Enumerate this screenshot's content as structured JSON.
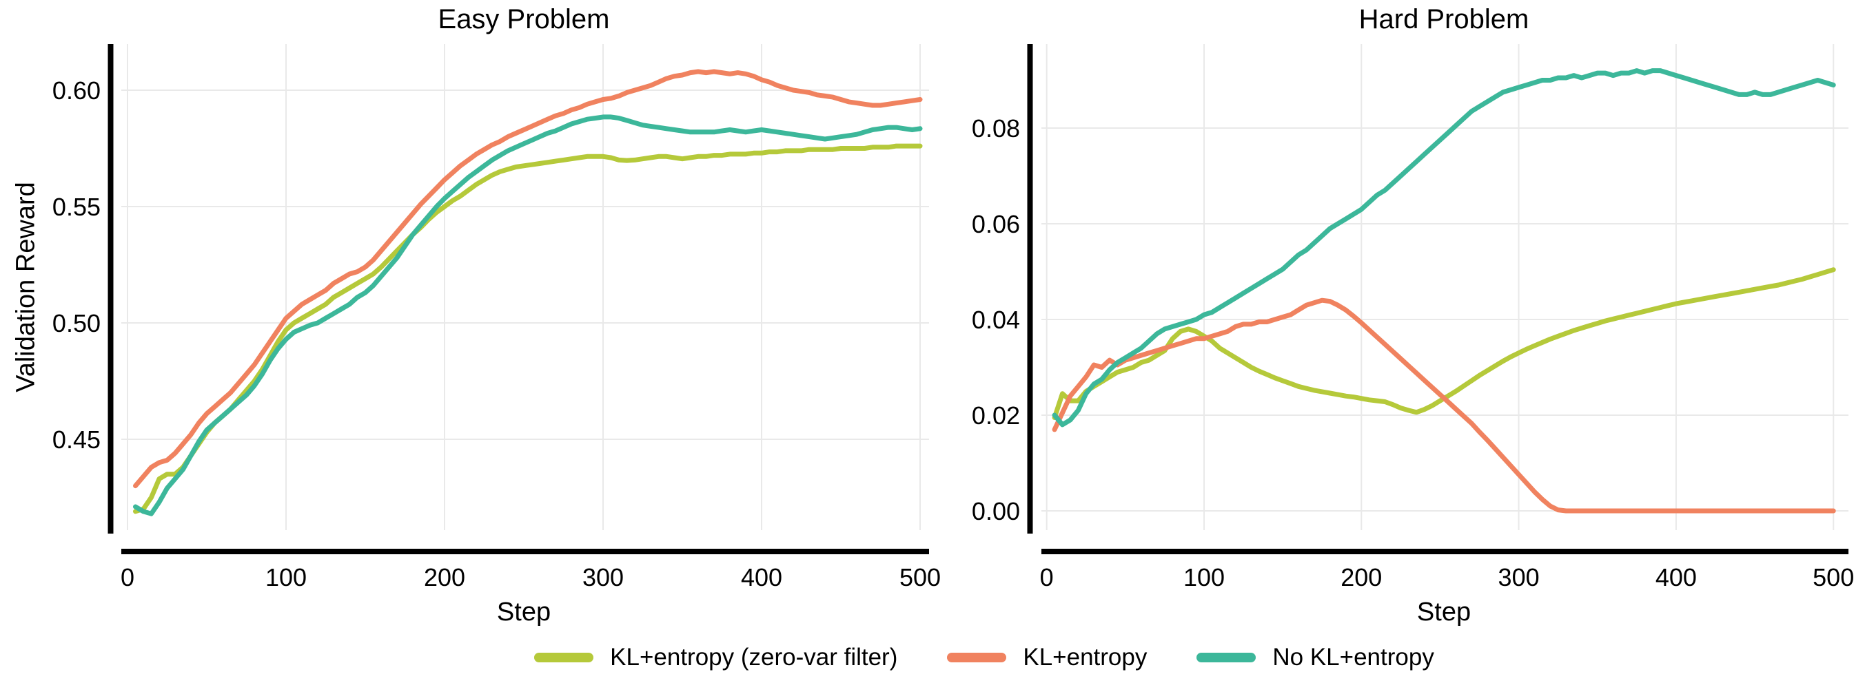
{
  "figure": {
    "background": "#ffffff",
    "text_color": "#000000",
    "grid_color": "#e9e9e9",
    "axis_color": "#000000"
  },
  "legend": {
    "items": [
      {
        "label": "KL+entropy (zero-var filter)",
        "color": "#b5c93a"
      },
      {
        "label": "KL+entropy",
        "color": "#f0825f"
      },
      {
        "label": "No KL+entropy",
        "color": "#3cb79a"
      }
    ]
  },
  "chart_data": [
    {
      "type": "line",
      "title": "Easy Problem",
      "xlabel": "Step",
      "ylabel": "Validation Reward",
      "grid": true,
      "legend_position": "bottom-center",
      "xlim": [
        0,
        500
      ],
      "ylim": [
        0.415,
        0.62
      ],
      "x_ticks": [
        {
          "value": 0,
          "label": "0"
        },
        {
          "value": 100,
          "label": "100"
        },
        {
          "value": 200,
          "label": "200"
        },
        {
          "value": 300,
          "label": "300"
        },
        {
          "value": 400,
          "label": "400"
        },
        {
          "value": 500,
          "label": "500"
        }
      ],
      "y_ticks": [
        {
          "value": 0.45,
          "label": "0.45"
        },
        {
          "value": 0.5,
          "label": "0.50"
        },
        {
          "value": 0.55,
          "label": "0.55"
        },
        {
          "value": 0.6,
          "label": "0.60"
        }
      ],
      "x": [
        5,
        10,
        15,
        20,
        25,
        30,
        35,
        40,
        45,
        50,
        55,
        60,
        65,
        70,
        75,
        80,
        85,
        90,
        95,
        100,
        105,
        110,
        115,
        120,
        125,
        130,
        135,
        140,
        145,
        150,
        155,
        160,
        165,
        170,
        175,
        180,
        185,
        190,
        195,
        200,
        205,
        210,
        215,
        220,
        225,
        230,
        235,
        240,
        245,
        250,
        255,
        260,
        265,
        270,
        275,
        280,
        285,
        290,
        295,
        300,
        305,
        310,
        315,
        320,
        325,
        330,
        335,
        340,
        345,
        350,
        355,
        360,
        365,
        370,
        375,
        380,
        385,
        390,
        395,
        400,
        405,
        410,
        415,
        420,
        425,
        430,
        435,
        440,
        445,
        450,
        455,
        460,
        465,
        470,
        475,
        480,
        485,
        490,
        495,
        500
      ],
      "series": [
        {
          "name": "KL+entropy (zero-var filter)",
          "color": "#b5c93a",
          "values": [
            0.419,
            0.42,
            0.425,
            0.433,
            0.435,
            0.435,
            0.438,
            0.443,
            0.448,
            0.453,
            0.457,
            0.46,
            0.463,
            0.467,
            0.471,
            0.475,
            0.48,
            0.486,
            0.492,
            0.497,
            0.5,
            0.502,
            0.504,
            0.506,
            0.508,
            0.511,
            0.513,
            0.515,
            0.517,
            0.519,
            0.521,
            0.524,
            0.5275,
            0.531,
            0.5345,
            0.538,
            0.541,
            0.5445,
            0.5475,
            0.55,
            0.5525,
            0.5545,
            0.557,
            0.5595,
            0.5615,
            0.5635,
            0.565,
            0.566,
            0.567,
            0.5675,
            0.568,
            0.5685,
            0.569,
            0.5695,
            0.57,
            0.5705,
            0.571,
            0.5715,
            0.5715,
            0.5715,
            0.571,
            0.57,
            0.5698,
            0.57,
            0.5705,
            0.571,
            0.5715,
            0.5715,
            0.571,
            0.5705,
            0.571,
            0.5715,
            0.5715,
            0.572,
            0.572,
            0.5725,
            0.5725,
            0.5725,
            0.573,
            0.573,
            0.5735,
            0.5735,
            0.574,
            0.574,
            0.574,
            0.5745,
            0.5745,
            0.5745,
            0.5745,
            0.575,
            0.575,
            0.575,
            0.575,
            0.5755,
            0.5755,
            0.5755,
            0.576,
            0.576,
            0.576,
            0.576
          ]
        },
        {
          "name": "KL+entropy",
          "color": "#f0825f",
          "values": [
            0.43,
            0.434,
            0.438,
            0.44,
            0.441,
            0.444,
            0.448,
            0.452,
            0.457,
            0.461,
            0.464,
            0.467,
            0.47,
            0.474,
            0.478,
            0.482,
            0.487,
            0.492,
            0.497,
            0.502,
            0.505,
            0.508,
            0.51,
            0.512,
            0.514,
            0.517,
            0.519,
            0.521,
            0.522,
            0.524,
            0.527,
            0.531,
            0.535,
            0.539,
            0.543,
            0.547,
            0.551,
            0.5545,
            0.558,
            0.5615,
            0.5645,
            0.5675,
            0.57,
            0.5725,
            0.5745,
            0.5765,
            0.578,
            0.58,
            0.5815,
            0.583,
            0.5845,
            0.586,
            0.5875,
            0.589,
            0.59,
            0.5915,
            0.5925,
            0.594,
            0.595,
            0.596,
            0.5965,
            0.5975,
            0.599,
            0.6,
            0.601,
            0.602,
            0.6035,
            0.605,
            0.606,
            0.6065,
            0.6075,
            0.608,
            0.6075,
            0.608,
            0.6075,
            0.607,
            0.6075,
            0.607,
            0.606,
            0.6045,
            0.6035,
            0.602,
            0.601,
            0.6,
            0.5995,
            0.599,
            0.598,
            0.5975,
            0.597,
            0.596,
            0.595,
            0.5945,
            0.594,
            0.5935,
            0.5935,
            0.594,
            0.5945,
            0.595,
            0.5955,
            0.596
          ]
        },
        {
          "name": "No KL+entropy",
          "color": "#3cb79a",
          "values": [
            0.421,
            0.419,
            0.418,
            0.423,
            0.429,
            0.433,
            0.437,
            0.443,
            0.449,
            0.454,
            0.457,
            0.46,
            0.463,
            0.466,
            0.469,
            0.473,
            0.478,
            0.484,
            0.489,
            0.493,
            0.496,
            0.4975,
            0.499,
            0.5,
            0.502,
            0.504,
            0.506,
            0.508,
            0.511,
            0.513,
            0.516,
            0.52,
            0.524,
            0.528,
            0.533,
            0.538,
            0.542,
            0.546,
            0.55,
            0.5535,
            0.5565,
            0.5595,
            0.5625,
            0.565,
            0.5675,
            0.57,
            0.572,
            0.574,
            0.5755,
            0.577,
            0.5785,
            0.58,
            0.5815,
            0.5825,
            0.584,
            0.5855,
            0.5865,
            0.5875,
            0.588,
            0.5885,
            0.5885,
            0.588,
            0.587,
            0.586,
            0.585,
            0.5845,
            0.584,
            0.5835,
            0.583,
            0.5825,
            0.582,
            0.582,
            0.582,
            0.582,
            0.5825,
            0.583,
            0.5825,
            0.582,
            0.5825,
            0.583,
            0.5825,
            0.582,
            0.5815,
            0.581,
            0.5805,
            0.58,
            0.5795,
            0.579,
            0.5795,
            0.58,
            0.5805,
            0.581,
            0.582,
            0.583,
            0.5835,
            0.584,
            0.584,
            0.5835,
            0.583,
            0.5835
          ]
        }
      ]
    },
    {
      "type": "line",
      "title": "Hard Problem",
      "xlabel": "Step",
      "ylabel": "",
      "grid": true,
      "xlim": [
        0,
        500
      ],
      "ylim": [
        -0.004,
        0.098
      ],
      "x_ticks": [
        {
          "value": 0,
          "label": "0"
        },
        {
          "value": 100,
          "label": "100"
        },
        {
          "value": 200,
          "label": "200"
        },
        {
          "value": 300,
          "label": "300"
        },
        {
          "value": 400,
          "label": "400"
        },
        {
          "value": 500,
          "label": "500"
        }
      ],
      "y_ticks": [
        {
          "value": 0.0,
          "label": "0.00"
        },
        {
          "value": 0.02,
          "label": "0.02"
        },
        {
          "value": 0.04,
          "label": "0.04"
        },
        {
          "value": 0.06,
          "label": "0.06"
        },
        {
          "value": 0.08,
          "label": "0.08"
        }
      ],
      "x": [
        5,
        10,
        15,
        20,
        25,
        30,
        35,
        40,
        45,
        50,
        55,
        60,
        65,
        70,
        75,
        80,
        85,
        90,
        95,
        100,
        105,
        110,
        115,
        120,
        125,
        130,
        135,
        140,
        145,
        150,
        155,
        160,
        165,
        170,
        175,
        180,
        185,
        190,
        195,
        200,
        205,
        210,
        215,
        220,
        225,
        230,
        235,
        240,
        245,
        250,
        255,
        260,
        265,
        270,
        275,
        280,
        285,
        290,
        295,
        300,
        305,
        310,
        315,
        320,
        325,
        330,
        335,
        340,
        345,
        350,
        355,
        360,
        365,
        370,
        375,
        380,
        385,
        390,
        395,
        400,
        405,
        410,
        415,
        420,
        425,
        430,
        435,
        440,
        445,
        450,
        455,
        460,
        465,
        470,
        475,
        480,
        485,
        490,
        495,
        500
      ],
      "series": [
        {
          "name": "KL+entropy (zero-var filter)",
          "color": "#b5c93a",
          "values": [
            0.0195,
            0.0245,
            0.023,
            0.023,
            0.025,
            0.026,
            0.027,
            0.028,
            0.029,
            0.0295,
            0.03,
            0.031,
            0.0315,
            0.0325,
            0.0335,
            0.036,
            0.0375,
            0.038,
            0.0375,
            0.0365,
            0.0355,
            0.034,
            0.033,
            0.032,
            0.031,
            0.03,
            0.0292,
            0.0285,
            0.0278,
            0.0272,
            0.0266,
            0.026,
            0.0256,
            0.0252,
            0.0249,
            0.0246,
            0.0243,
            0.024,
            0.0238,
            0.0235,
            0.0232,
            0.023,
            0.0228,
            0.0222,
            0.0215,
            0.021,
            0.0206,
            0.0212,
            0.022,
            0.023,
            0.024,
            0.025,
            0.0261,
            0.0272,
            0.0283,
            0.0293,
            0.0303,
            0.0313,
            0.0322,
            0.033,
            0.0338,
            0.0345,
            0.0352,
            0.0359,
            0.0365,
            0.0371,
            0.0377,
            0.0382,
            0.0387,
            0.0392,
            0.0397,
            0.0401,
            0.0405,
            0.0409,
            0.0413,
            0.0417,
            0.0421,
            0.0425,
            0.0429,
            0.0433,
            0.0436,
            0.0439,
            0.0442,
            0.0445,
            0.0448,
            0.0451,
            0.0454,
            0.0457,
            0.046,
            0.0463,
            0.0466,
            0.0469,
            0.0472,
            0.0476,
            0.048,
            0.0484,
            0.0489,
            0.0494,
            0.0499,
            0.0504
          ]
        },
        {
          "name": "KL+entropy",
          "color": "#f0825f",
          "values": [
            0.017,
            0.0205,
            0.024,
            0.026,
            0.028,
            0.0305,
            0.03,
            0.0315,
            0.0305,
            0.0315,
            0.032,
            0.0325,
            0.033,
            0.0335,
            0.034,
            0.0345,
            0.035,
            0.0355,
            0.036,
            0.036,
            0.0365,
            0.037,
            0.0375,
            0.0385,
            0.039,
            0.039,
            0.0395,
            0.0395,
            0.04,
            0.0405,
            0.041,
            0.042,
            0.043,
            0.0435,
            0.044,
            0.0438,
            0.043,
            0.042,
            0.0407,
            0.0393,
            0.0378,
            0.0363,
            0.0348,
            0.0333,
            0.0318,
            0.0303,
            0.0288,
            0.0273,
            0.0258,
            0.0243,
            0.0228,
            0.0213,
            0.0198,
            0.0183,
            0.0165,
            0.0148,
            0.013,
            0.0112,
            0.0094,
            0.0076,
            0.0058,
            0.004,
            0.0024,
            0.001,
            0.0002,
            0.0,
            0.0,
            0.0,
            0.0,
            0.0,
            0.0,
            0.0,
            0.0,
            0.0,
            0.0,
            0.0,
            0.0,
            0.0,
            0.0,
            0.0,
            0.0,
            0.0,
            0.0,
            0.0,
            0.0,
            0.0,
            0.0,
            0.0,
            0.0,
            0.0,
            0.0,
            0.0,
            0.0,
            0.0,
            0.0,
            0.0,
            0.0,
            0.0,
            0.0,
            0.0
          ]
        },
        {
          "name": "No KL+entropy",
          "color": "#3cb79a",
          "values": [
            0.02,
            0.018,
            0.019,
            0.021,
            0.0245,
            0.0265,
            0.0275,
            0.0295,
            0.031,
            0.032,
            0.033,
            0.034,
            0.0355,
            0.037,
            0.038,
            0.0385,
            0.039,
            0.0395,
            0.04,
            0.041,
            0.0415,
            0.0425,
            0.0435,
            0.0445,
            0.0455,
            0.0465,
            0.0475,
            0.0485,
            0.0495,
            0.0505,
            0.052,
            0.0535,
            0.0545,
            0.056,
            0.0575,
            0.059,
            0.06,
            0.061,
            0.062,
            0.063,
            0.0645,
            0.066,
            0.067,
            0.0685,
            0.07,
            0.0715,
            0.073,
            0.0745,
            0.076,
            0.0775,
            0.079,
            0.0805,
            0.082,
            0.0835,
            0.0845,
            0.0855,
            0.0865,
            0.0875,
            0.088,
            0.0885,
            0.089,
            0.0895,
            0.09,
            0.09,
            0.0905,
            0.0905,
            0.091,
            0.0905,
            0.091,
            0.0915,
            0.0915,
            0.091,
            0.0915,
            0.0915,
            0.092,
            0.0915,
            0.092,
            0.092,
            0.0915,
            0.091,
            0.0905,
            0.09,
            0.0895,
            0.089,
            0.0885,
            0.088,
            0.0875,
            0.087,
            0.087,
            0.0875,
            0.087,
            0.087,
            0.0875,
            0.088,
            0.0885,
            0.089,
            0.0895,
            0.09,
            0.0895,
            0.089
          ]
        }
      ]
    }
  ]
}
